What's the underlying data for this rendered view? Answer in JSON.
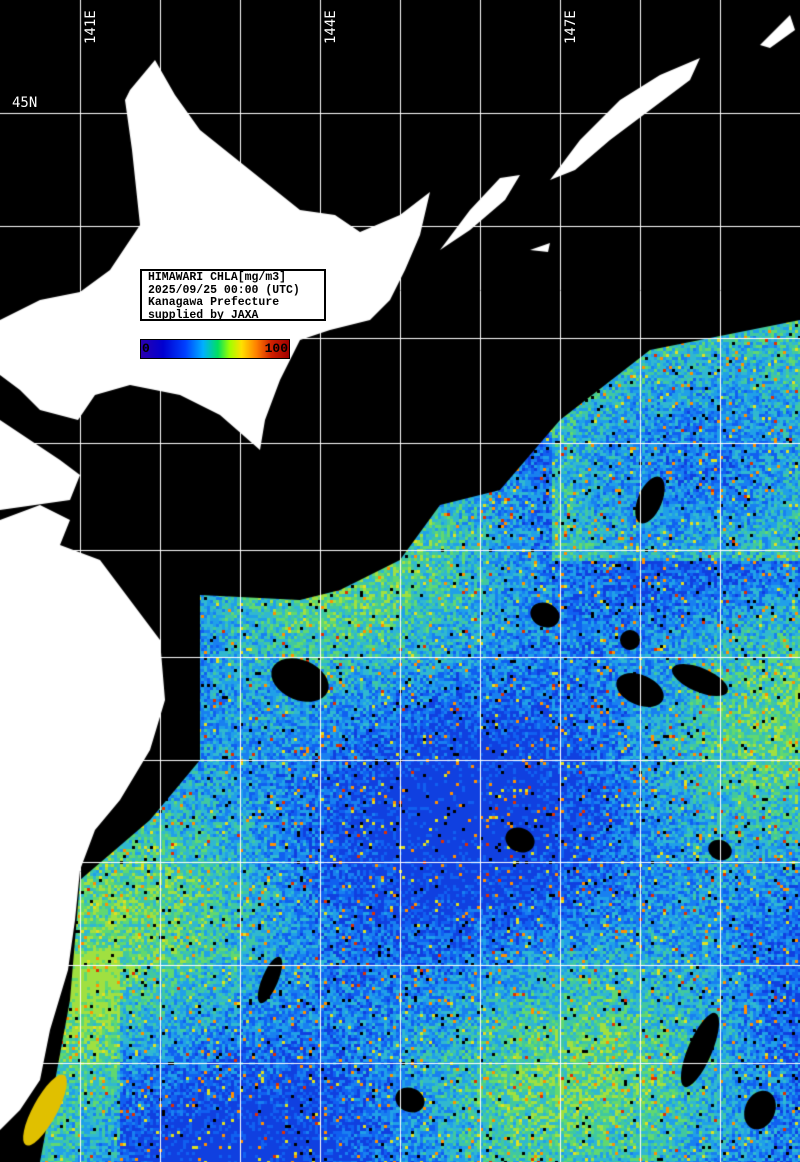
{
  "legend": {
    "lines": [
      "HIMAWARI CHLA[mg/m3]",
      "2025/09/25 00:00 (UTC)",
      "Kanagawa Prefecture",
      "supplied by JAXA"
    ]
  },
  "colorbar": {
    "min": "0",
    "max": "100",
    "colors": [
      "#2a00b0",
      "#0040ff",
      "#00b0ff",
      "#00e060",
      "#ffe000",
      "#ff8000",
      "#a00000"
    ]
  },
  "grid": {
    "lon_labels": [
      "141E",
      "144E",
      "147E"
    ],
    "lat_labels": [
      "45N"
    ],
    "color": "#ffffff"
  },
  "colors": {
    "land": "#ffffff",
    "no_data": "#000000"
  }
}
